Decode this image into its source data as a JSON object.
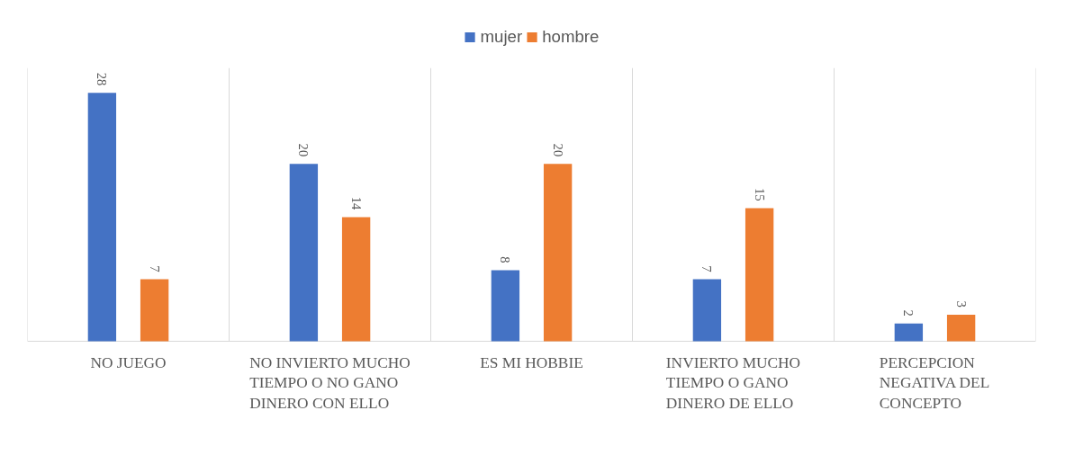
{
  "chart_data": {
    "type": "bar",
    "categories": [
      "NO JUEGO",
      "NO INVIERTO MUCHO TIEMPO O NO GANO DINERO CON ELLO",
      "ES MI HOBBIE",
      "INVIERTO MUCHO TIEMPO O GANO DINERO DE ELLO",
      "PERCEPCION NEGATIVA DEL CONCEPTO"
    ],
    "series": [
      {
        "name": "mujer",
        "color": "#4472c4",
        "values": [
          28,
          20,
          8,
          7,
          2
        ]
      },
      {
        "name": "hombre",
        "color": "#ed7d31",
        "values": [
          7,
          14,
          20,
          15,
          3
        ]
      }
    ],
    "data_labels": true,
    "legend": "top",
    "grid": "x"
  }
}
